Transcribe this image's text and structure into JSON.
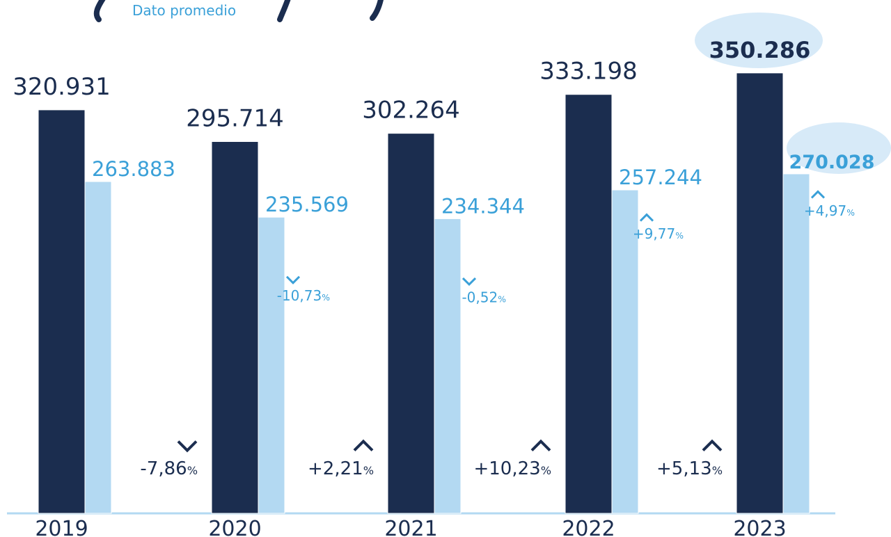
{
  "chart_data": {
    "type": "bar",
    "subtitle": "Dato promedio",
    "categories": [
      "2019",
      "2020",
      "2021",
      "2022",
      "2023"
    ],
    "series": [
      {
        "color": "#1b2d4f",
        "label_color": "#1b2d4f",
        "values": [
          320931,
          295714,
          302264,
          333198,
          350286
        ],
        "value_labels": [
          "320.931",
          "295.714",
          "302.264",
          "333.198",
          "350.286"
        ],
        "changes": [
          null,
          {
            "number": "-7,86",
            "unit": "%"
          },
          {
            "number": "+2,21",
            "unit": "%"
          },
          {
            "number": "+10,23",
            "unit": "%"
          },
          {
            "number": "+5,13",
            "unit": "%"
          }
        ]
      },
      {
        "color": "#b3d9f2",
        "label_color": "#3aa0d8",
        "values": [
          263883,
          235569,
          234344,
          257244,
          270028
        ],
        "value_labels": [
          "263.883",
          "235.569",
          "234.344",
          "257.244",
          "270.028"
        ],
        "changes": [
          null,
          {
            "number": "-10,73",
            "unit": "%"
          },
          {
            "number": "-0,52",
            "unit": "%"
          },
          {
            "number": "+9,77",
            "unit": "%"
          },
          {
            "number": "+4,97",
            "unit": "%"
          }
        ]
      }
    ],
    "ylim": [
      0,
      400000
    ]
  }
}
